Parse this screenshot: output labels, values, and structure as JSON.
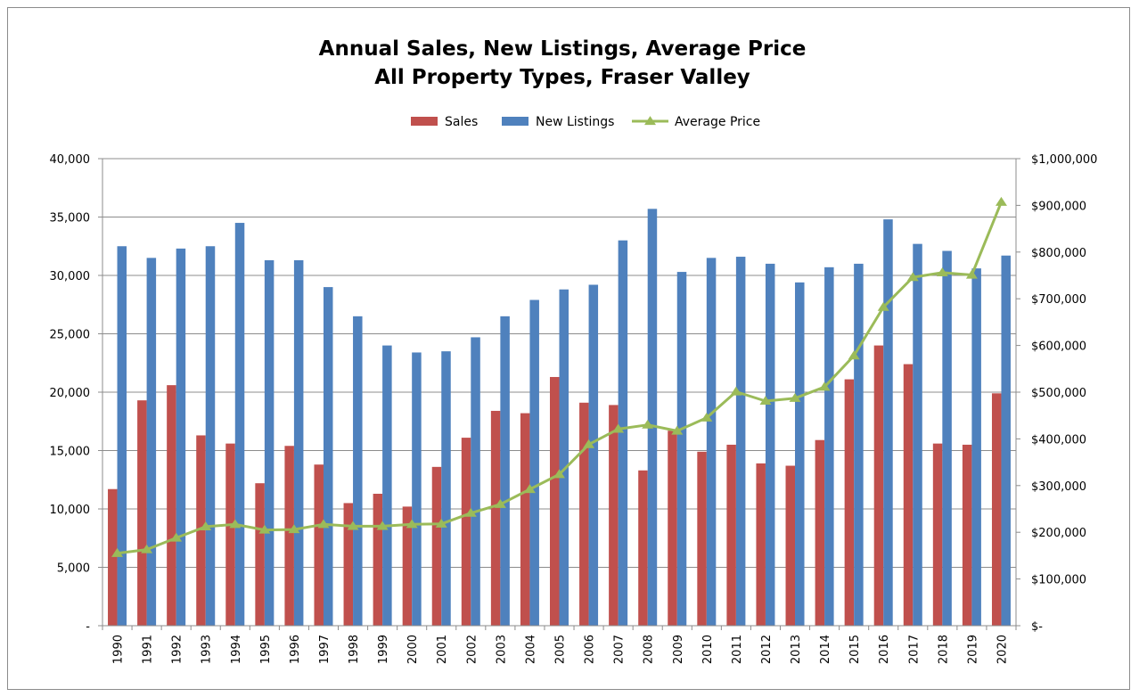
{
  "chart_data": {
    "type": "bar",
    "title": [
      "Annual Sales, New Listings, Average Price",
      "All Property Types, Fraser Valley"
    ],
    "categories": [
      "1990",
      "1991",
      "1992",
      "1993",
      "1994",
      "1995",
      "1996",
      "1997",
      "1998",
      "1999",
      "2000",
      "2001",
      "2002",
      "2003",
      "2004",
      "2005",
      "2006",
      "2007",
      "2008",
      "2009",
      "2010",
      "2011",
      "2012",
      "2013",
      "2014",
      "2015",
      "2016",
      "2017",
      "2018",
      "2019",
      "2020"
    ],
    "series": [
      {
        "name": "Sales",
        "kind": "bar",
        "axis": "left",
        "color": "#c0504d",
        "values": [
          11700,
          19300,
          20600,
          16300,
          15600,
          12200,
          15400,
          13800,
          10500,
          11300,
          10200,
          13600,
          16100,
          18400,
          18200,
          21300,
          19100,
          18900,
          13300,
          16700,
          14900,
          15500,
          13900,
          13700,
          15900,
          21100,
          24000,
          22400,
          15600,
          15500,
          19900
        ]
      },
      {
        "name": "New Listings",
        "kind": "bar",
        "axis": "left",
        "color": "#4f81bd",
        "values": [
          32500,
          31500,
          32300,
          32500,
          34500,
          31300,
          31300,
          29000,
          26500,
          24000,
          23400,
          23500,
          24700,
          26500,
          27900,
          28800,
          29200,
          33000,
          35700,
          30300,
          31500,
          31600,
          31000,
          29400,
          30700,
          31000,
          34800,
          32700,
          32100,
          30600,
          31700
        ]
      },
      {
        "name": "Average Price",
        "kind": "line",
        "axis": "right",
        "color": "#9bbb59",
        "values": [
          155000,
          163000,
          188000,
          212000,
          217000,
          205000,
          206000,
          217000,
          213000,
          213000,
          217000,
          218000,
          241000,
          260000,
          292000,
          324000,
          388000,
          421000,
          430000,
          417000,
          445000,
          501000,
          481000,
          487000,
          511000,
          578000,
          682000,
          746000,
          756000,
          751000,
          907000
        ]
      }
    ],
    "left_axis": {
      "min": 0,
      "max": 40000,
      "step": 5000,
      "tick_labels": [
        "-",
        "5,000",
        "10,000",
        "15,000",
        "20,000",
        "25,000",
        "30,000",
        "35,000",
        "40,000"
      ]
    },
    "right_axis": {
      "min": 0,
      "max": 1000000,
      "step": 100000,
      "tick_labels": [
        "$-",
        "$100,000",
        "$200,000",
        "$300,000",
        "$400,000",
        "$500,000",
        "$600,000",
        "$700,000",
        "$800,000",
        "$900,000",
        "$1,000,000"
      ]
    },
    "grid": "horizontal",
    "legend_position": "top-center"
  }
}
